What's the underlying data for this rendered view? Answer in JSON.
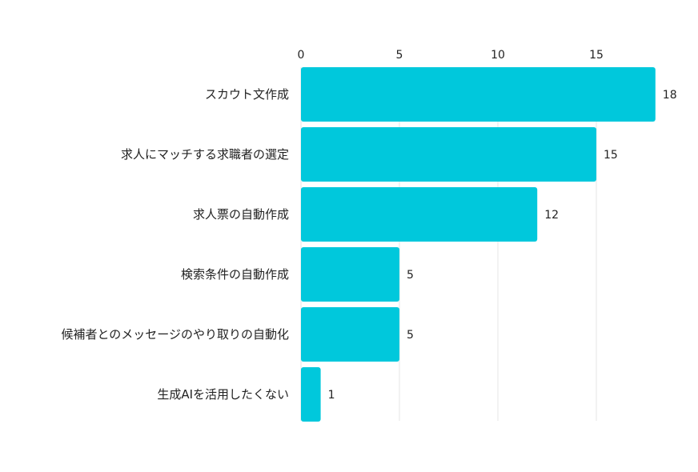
{
  "chart_data": {
    "type": "bar",
    "orientation": "horizontal",
    "categories": [
      "スカウト文作成",
      "求人にマッチする求職者の選定",
      "求人票の自動作成",
      "検索条件の自動作成",
      "候補者とのメッセージのやり取りの自動化",
      "生成AIを活用したくない"
    ],
    "values": [
      18,
      15,
      12,
      5,
      5,
      1
    ],
    "value_labels": [
      "18",
      "15",
      "12",
      "5",
      "5",
      "1"
    ],
    "x_ticks": [
      "0",
      "5",
      "10",
      "15"
    ],
    "xlim": [
      0,
      18
    ],
    "x_axis_position": "top",
    "grid": true,
    "bar_color": "#00c8dc",
    "grid_color": "#e6e6e6"
  }
}
